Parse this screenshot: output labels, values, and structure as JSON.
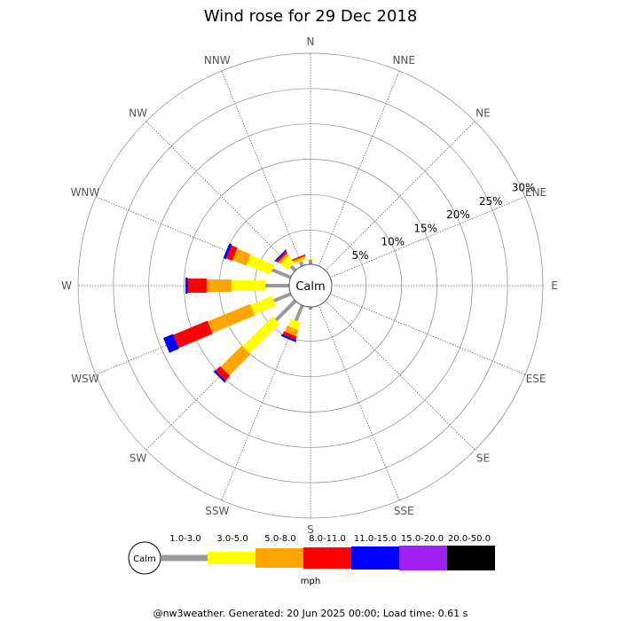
{
  "title": "Wind rose for 29 Dec 2018",
  "footer": "@nw3weather. Generated: 20 Jun 2025 00:00; Load time: 0.61 s",
  "chart_data": {
    "type": "wind_rose",
    "calm_label": "Calm",
    "radial_max_pct": 30,
    "rings_pct": [
      5,
      10,
      15,
      20,
      25,
      30
    ],
    "ring_labels": [
      "5%",
      "10%",
      "15%",
      "20%",
      "25%",
      "30%"
    ],
    "directions": [
      "N",
      "NNE",
      "NE",
      "ENE",
      "E",
      "ESE",
      "SE",
      "SSE",
      "S",
      "SSW",
      "SW",
      "WSW",
      "W",
      "WNW",
      "NW",
      "NNW"
    ],
    "speed_bins": [
      "1.0-3.0",
      "3.0-5.0",
      "5.0-8.0",
      "8.0-11.0",
      "11.0-15.0",
      "15.0-20.0",
      "20.0-50.0"
    ],
    "speed_unit": "mph",
    "colors": [
      "#999999",
      "#ffff00",
      "#ffa500",
      "#ff0000",
      "#0000ff",
      "#a020f0",
      "#000000"
    ],
    "bar_widths": [
      4,
      12,
      14,
      16,
      18,
      20,
      22
    ],
    "cumulative_pct": {
      "N": [
        0.8,
        0.9,
        0.9,
        0.9,
        0.9,
        0.9,
        0.9
      ],
      "NNE": [
        0,
        0,
        0,
        0,
        0,
        0,
        0
      ],
      "NE": [
        0,
        0,
        0,
        0,
        0,
        0,
        0
      ],
      "ENE": [
        0,
        0,
        0,
        0,
        0,
        0,
        0
      ],
      "E": [
        0,
        0,
        0,
        0,
        0,
        0,
        0
      ],
      "ESE": [
        0,
        0,
        0,
        0,
        0,
        0,
        0
      ],
      "SE": [
        0,
        0,
        0,
        0,
        0,
        0,
        0
      ],
      "SSE": [
        0,
        0,
        0,
        0,
        0,
        0,
        0
      ],
      "S": [
        0.5,
        0.5,
        0.5,
        0.5,
        0.5,
        0.5,
        0.5
      ],
      "SSW": [
        2.5,
        3.6,
        4.5,
        5.0,
        5.3,
        5.3,
        5.3
      ],
      "SW": [
        4.0,
        10.0,
        14.2,
        15.1,
        15.4,
        15.4,
        15.4
      ],
      "WSW": [
        2.7,
        6.0,
        12.5,
        17.7,
        19.2,
        19.2,
        19.2
      ],
      "W": [
        3.5,
        8.3,
        11.8,
        14.5,
        14.8,
        14.8,
        14.8
      ],
      "WNW": [
        3.0,
        6.6,
        8.7,
        9.6,
        10.0,
        10.0,
        10.0
      ],
      "NW": [
        1.0,
        2.3,
        2.7,
        3.0,
        3.2,
        3.2,
        3.2
      ],
      "NNW": [
        0.8,
        1.0,
        1.3,
        1.5,
        1.5,
        1.5,
        1.5
      ]
    }
  }
}
